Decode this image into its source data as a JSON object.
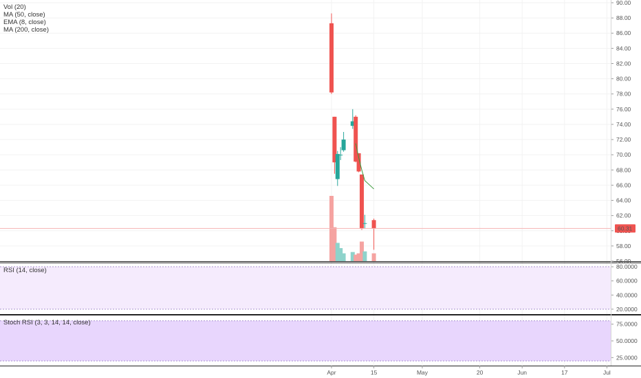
{
  "price_pane": {
    "indicators": [
      "Vol (20)",
      "MA (50, close)",
      "EMA (8, close)",
      "MA (200, close)"
    ],
    "last_price_label": "60.31",
    "colors": {
      "up": "#26a69a",
      "down": "#ef5350",
      "vol_up": "#8ed3cb",
      "vol_down": "#f5a3a1",
      "ema": "#3a9a3a",
      "last_line": "#f4b3b3"
    }
  },
  "rsi_pane": {
    "title": "RSI (14, close)",
    "fill": "#f5ebfd"
  },
  "stoch_pane": {
    "title": "Stoch RSI (3, 3, 14, 14, close)",
    "fill": "#e8d6fd"
  },
  "chart_data": [
    {
      "type": "candlestick",
      "ylim": [
        56,
        90
      ],
      "y_ticks": [
        "56.00",
        "58.00",
        "60.00",
        "62.00",
        "64.00",
        "66.00",
        "68.00",
        "70.00",
        "72.00",
        "74.00",
        "76.00",
        "78.00",
        "80.00",
        "82.00",
        "84.00",
        "86.00",
        "88.00",
        "90.00"
      ],
      "x_ticks": [
        "Apr",
        "15",
        "May",
        "20",
        "Jun",
        "17",
        "Jul"
      ],
      "x_tick_dates": [
        "2019-04-01",
        "2019-04-15",
        "2019-05-01",
        "2019-05-20",
        "2019-06-03",
        "2019-06-17",
        "2019-07-01"
      ],
      "last_price": 60.31,
      "candles": [
        {
          "date": "2019-04-01",
          "open": 87.3,
          "high": 88.6,
          "low": 78.0,
          "close": 78.2
        },
        {
          "date": "2019-04-02",
          "open": 75.0,
          "high": 75.0,
          "low": 67.5,
          "close": 69.0
        },
        {
          "date": "2019-04-03",
          "open": 66.8,
          "high": 70.5,
          "low": 65.9,
          "close": 70.1
        },
        {
          "date": "2019-04-04",
          "open": 70.0,
          "high": 71.0,
          "low": 69.3,
          "close": 70.0
        },
        {
          "date": "2019-04-05",
          "open": 70.6,
          "high": 73.0,
          "low": 70.4,
          "close": 72.0
        },
        {
          "date": "2019-04-08",
          "open": 73.8,
          "high": 76.0,
          "low": 73.4,
          "close": 74.4
        },
        {
          "date": "2019-04-09",
          "open": 75.0,
          "high": 75.2,
          "low": 69.0,
          "close": 69.1
        },
        {
          "date": "2019-04-10",
          "open": 70.2,
          "high": 70.2,
          "low": 67.7,
          "close": 67.8
        },
        {
          "date": "2019-04-11",
          "open": 67.4,
          "high": 67.4,
          "low": 60.1,
          "close": 60.3
        },
        {
          "date": "2019-04-12",
          "open": 61.0,
          "high": 62.1,
          "low": 60.3,
          "close": 61.0
        },
        {
          "date": "2019-04-15",
          "open": 61.4,
          "high": 61.6,
          "low": 57.5,
          "close": 60.3
        }
      ],
      "volume": [
        100,
        52,
        28,
        20,
        12,
        14,
        10,
        12,
        30,
        15,
        12
      ],
      "ema_8": [
        {
          "date": "2019-04-09",
          "value": 71.5
        },
        {
          "date": "2019-04-10",
          "value": 69.6
        },
        {
          "date": "2019-04-11",
          "value": 68.0
        },
        {
          "date": "2019-04-12",
          "value": 66.6
        },
        {
          "date": "2019-04-15",
          "value": 65.5
        }
      ]
    },
    {
      "type": "line",
      "title": "RSI (14, close)",
      "ylim": [
        15,
        85
      ],
      "y_ticks": [
        "20.0000",
        "40.0000",
        "60.0000",
        "80.0000"
      ],
      "band": [
        20,
        80
      ]
    },
    {
      "type": "line",
      "title": "Stoch RSI (3, 3, 14, 14, close)",
      "ylim": [
        13,
        88
      ],
      "y_ticks": [
        "25.0000",
        "50.0000",
        "75.0000"
      ],
      "band": [
        20,
        80
      ]
    }
  ]
}
